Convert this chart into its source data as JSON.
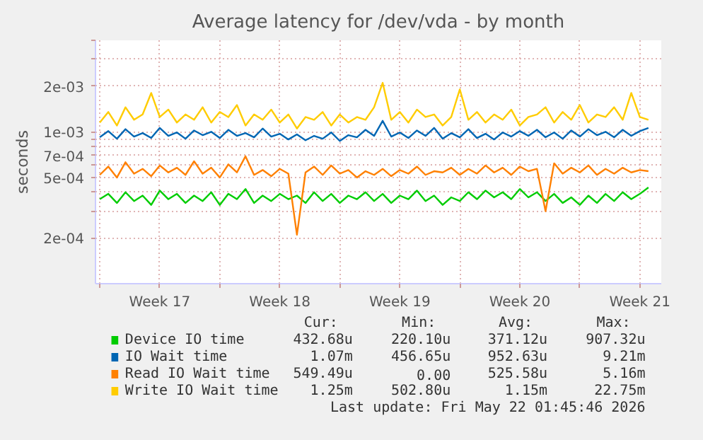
{
  "chart_data": {
    "type": "line",
    "title": "Average latency for /dev/vda - by month",
    "ylabel": "seconds",
    "x": [
      "2026-04-20T00:00",
      "2026-04-20T12:00",
      "2026-04-21T00:00",
      "2026-04-21T12:00",
      "2026-04-22T00:00",
      "2026-04-22T12:00",
      "2026-04-23T00:00",
      "2026-04-23T12:00",
      "2026-04-24T00:00",
      "2026-04-24T12:00",
      "2026-04-25T00:00",
      "2026-04-25T12:00",
      "2026-04-26T00:00",
      "2026-04-26T12:00",
      "2026-04-27T00:00",
      "2026-04-27T12:00",
      "2026-04-28T00:00",
      "2026-04-28T12:00",
      "2026-04-29T00:00",
      "2026-04-29T12:00",
      "2026-04-30T00:00",
      "2026-04-30T12:00",
      "2026-05-01T00:00",
      "2026-05-01T12:00",
      "2026-05-02T00:00",
      "2026-05-02T12:00",
      "2026-05-03T00:00",
      "2026-05-03T12:00",
      "2026-05-04T00:00",
      "2026-05-04T12:00",
      "2026-05-05T00:00",
      "2026-05-05T12:00",
      "2026-05-06T00:00",
      "2026-05-06T12:00",
      "2026-05-07T00:00",
      "2026-05-07T12:00",
      "2026-05-08T00:00",
      "2026-05-08T12:00",
      "2026-05-09T00:00",
      "2026-05-09T12:00",
      "2026-05-10T00:00",
      "2026-05-10T12:00",
      "2026-05-11T00:00",
      "2026-05-11T12:00",
      "2026-05-12T00:00",
      "2026-05-12T12:00",
      "2026-05-13T00:00",
      "2026-05-13T12:00",
      "2026-05-14T00:00",
      "2026-05-14T12:00",
      "2026-05-15T00:00",
      "2026-05-15T12:00",
      "2026-05-16T00:00",
      "2026-05-16T12:00",
      "2026-05-17T00:00",
      "2026-05-17T12:00",
      "2026-05-18T00:00",
      "2026-05-18T12:00",
      "2026-05-19T00:00",
      "2026-05-19T12:00",
      "2026-05-20T00:00",
      "2026-05-20T12:00",
      "2026-05-21T00:00",
      "2026-05-21T12:00",
      "2026-05-22T00:00"
    ],
    "series": [
      {
        "name": "Device IO time",
        "color": "#00cc00",
        "values": [
          0.00036,
          0.00039,
          0.00034,
          0.0004,
          0.00035,
          0.00038,
          0.00033,
          0.00041,
          0.00036,
          0.00039,
          0.00034,
          0.00038,
          0.00035,
          0.0004,
          0.00033,
          0.00039,
          0.00036,
          0.00042,
          0.00034,
          0.00038,
          0.00035,
          0.00039,
          0.00036,
          0.00038,
          0.00034,
          0.0004,
          0.00035,
          0.00039,
          0.00034,
          0.00038,
          0.00036,
          0.0004,
          0.00035,
          0.00039,
          0.00034,
          0.00038,
          0.00036,
          0.00041,
          0.00035,
          0.00038,
          0.00033,
          0.00037,
          0.00035,
          0.0004,
          0.00036,
          0.00041,
          0.00037,
          0.0004,
          0.00036,
          0.00042,
          0.00037,
          0.0004,
          0.00035,
          0.00039,
          0.00034,
          0.00037,
          0.00033,
          0.00038,
          0.00034,
          0.00039,
          0.00035,
          0.0004,
          0.00036,
          0.00039,
          0.00043
        ]
      },
      {
        "name": "IO Wait time",
        "color": "#0066b3",
        "values": [
          0.00092,
          0.00101,
          0.0009,
          0.00104,
          0.00093,
          0.00098,
          0.00091,
          0.00106,
          0.00094,
          0.00099,
          0.0009,
          0.00102,
          0.00095,
          0.001,
          0.00091,
          0.00103,
          0.00094,
          0.00098,
          0.00092,
          0.00105,
          0.00093,
          0.00097,
          0.00089,
          0.00096,
          0.00088,
          0.00094,
          0.0009,
          0.00099,
          0.00087,
          0.00095,
          0.00092,
          0.00103,
          0.00094,
          0.00118,
          0.00093,
          0.00099,
          0.00091,
          0.00102,
          0.00094,
          0.00106,
          0.0009,
          0.00098,
          0.00092,
          0.00104,
          0.00091,
          0.00097,
          0.00089,
          0.00099,
          0.00093,
          0.00101,
          0.00094,
          0.00103,
          0.00092,
          0.00099,
          0.0009,
          0.00102,
          0.00093,
          0.00104,
          0.00095,
          0.001,
          0.00092,
          0.00103,
          0.00094,
          0.00101,
          0.00106
        ]
      },
      {
        "name": "Read IO Wait time",
        "color": "#ff8000",
        "values": [
          0.00052,
          0.00059,
          0.0005,
          0.00063,
          0.00053,
          0.00057,
          0.00051,
          0.0006,
          0.00054,
          0.00058,
          0.00052,
          0.00064,
          0.00053,
          0.00058,
          0.0005,
          0.00061,
          0.00054,
          0.00069,
          0.00052,
          0.00056,
          0.00051,
          0.00057,
          0.00053,
          0.00021,
          0.00054,
          0.00059,
          0.00052,
          0.0006,
          0.00053,
          0.00056,
          0.0005,
          0.00055,
          0.00052,
          0.00057,
          0.00051,
          0.00056,
          0.00053,
          0.00059,
          0.00052,
          0.00055,
          0.00054,
          0.00058,
          0.00052,
          0.00057,
          0.00053,
          0.0006,
          0.00054,
          0.00058,
          0.00052,
          0.00059,
          0.00055,
          0.00057,
          0.0003,
          0.00062,
          0.00053,
          0.00058,
          0.00054,
          0.0006,
          0.00052,
          0.00057,
          0.00053,
          0.00058,
          0.00054,
          0.00056,
          0.00055
        ]
      },
      {
        "name": "Write IO Wait time",
        "color": "#ffcc00",
        "values": [
          0.00115,
          0.00135,
          0.0011,
          0.00145,
          0.0012,
          0.0013,
          0.0018,
          0.00125,
          0.0014,
          0.00115,
          0.0013,
          0.0012,
          0.00145,
          0.00115,
          0.00135,
          0.00125,
          0.0015,
          0.0011,
          0.0013,
          0.0012,
          0.0014,
          0.00115,
          0.0013,
          0.00105,
          0.00125,
          0.0012,
          0.00135,
          0.0011,
          0.0013,
          0.00115,
          0.00125,
          0.0012,
          0.00145,
          0.0021,
          0.0012,
          0.00135,
          0.00115,
          0.0014,
          0.00125,
          0.0013,
          0.0011,
          0.00125,
          0.0019,
          0.0012,
          0.00135,
          0.00115,
          0.0013,
          0.0012,
          0.0014,
          0.0011,
          0.00125,
          0.0013,
          0.00145,
          0.00115,
          0.00135,
          0.0012,
          0.0015,
          0.00115,
          0.0013,
          0.00125,
          0.00145,
          0.0012,
          0.0018,
          0.00125,
          0.0012
        ]
      }
    ],
    "log": "y",
    "ylim": [
      0.0001,
      0.004
    ],
    "yticks": [
      {
        "value": 0.0002,
        "label": "2e-04"
      },
      {
        "value": 0.0003,
        "label": null
      },
      {
        "value": 0.0004,
        "label": null
      },
      {
        "value": 0.0005,
        "label": "5e-04"
      },
      {
        "value": 0.0006,
        "label": null
      },
      {
        "value": 0.0007,
        "label": "7e-04"
      },
      {
        "value": 0.0008,
        "label": null
      },
      {
        "value": 0.0009,
        "label": null
      },
      {
        "value": 0.001,
        "label": "1e-03"
      },
      {
        "value": 0.002,
        "label": "2e-03"
      },
      {
        "value": 0.003,
        "label": null
      },
      {
        "value": 0.004,
        "label": null
      }
    ],
    "xlim": [
      "2026-04-19T18:00",
      "2026-05-22T18:00"
    ],
    "xticks": [
      {
        "value": "2026-04-20T00:00",
        "label": null
      },
      {
        "value": "2026-04-23T12:00",
        "label": "Week 17"
      },
      {
        "value": "2026-04-27T00:00",
        "label": null
      },
      {
        "value": "2026-04-30T12:00",
        "label": "Week 18"
      },
      {
        "value": "2026-05-04T00:00",
        "label": null
      },
      {
        "value": "2026-05-07T12:00",
        "label": "Week 19"
      },
      {
        "value": "2026-05-11T00:00",
        "label": null
      },
      {
        "value": "2026-05-14T12:00",
        "label": "Week 20"
      },
      {
        "value": "2026-05-18T00:00",
        "label": null
      },
      {
        "value": "2026-05-21T12:00",
        "label": "Week 21"
      }
    ],
    "grid": true,
    "legend": "bottom",
    "line_style": "solid",
    "annotations": [
      "Cur:",
      "Min:",
      "Avg:",
      "Max:",
      "432.68u",
      "220.10u",
      "371.12u",
      "907.32u",
      "1.07m",
      "456.65u",
      "952.63u",
      "9.21m",
      "549.49u",
      "0.00",
      "525.58u",
      "5.16m",
      "1.25m",
      "502.80u",
      "1.15m",
      "22.75m",
      "Last update: Fri May 22 01:45:46 2026"
    ]
  }
}
